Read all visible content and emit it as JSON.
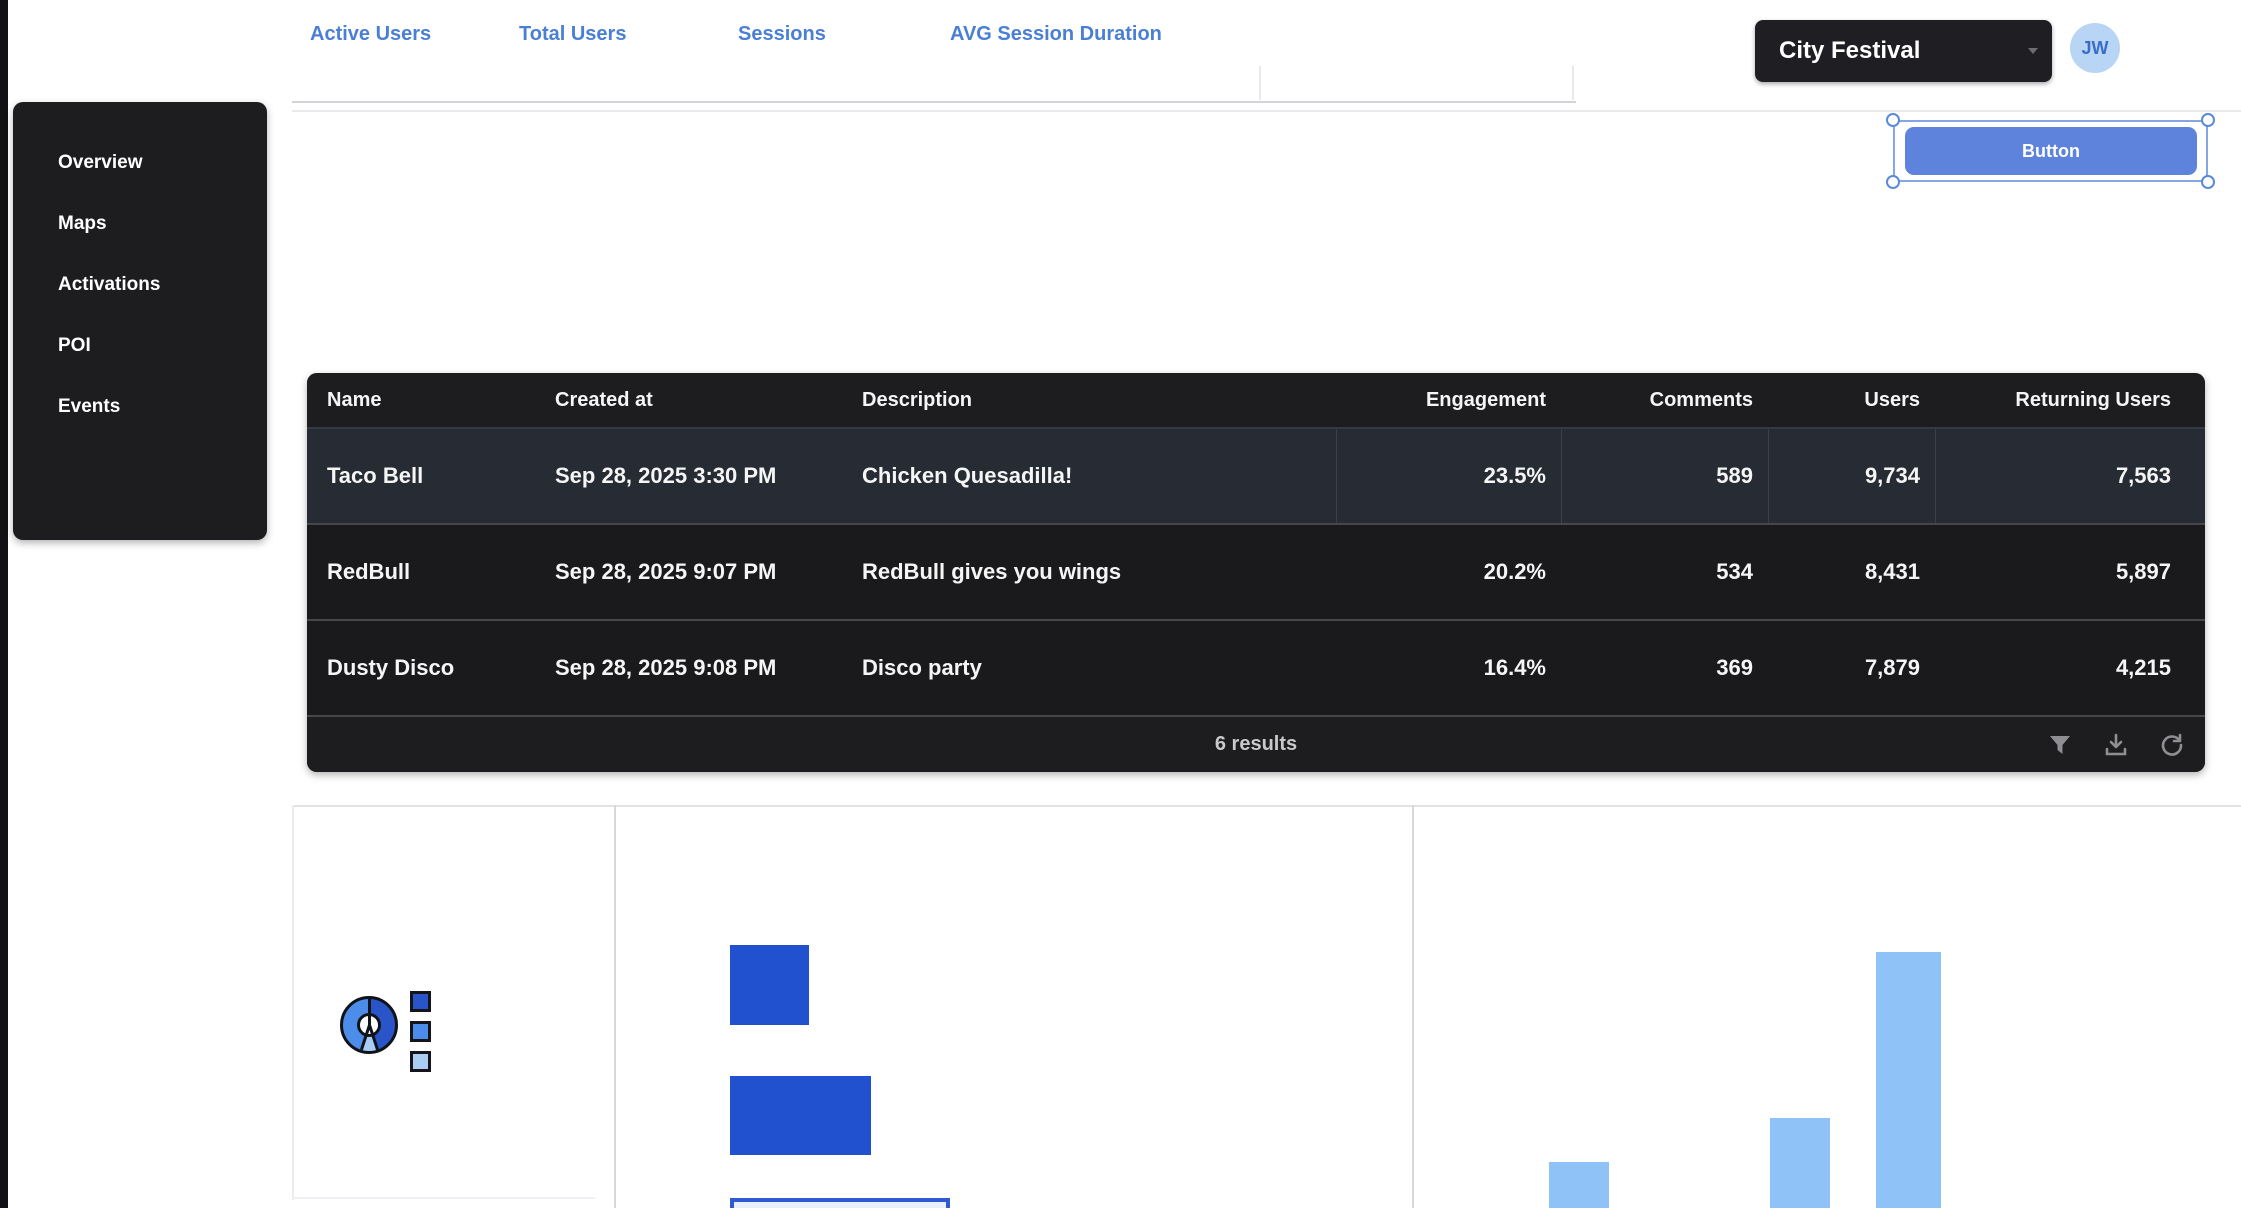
{
  "header": {
    "tabs": [
      {
        "label": "Active Users"
      },
      {
        "label": "Total Users"
      },
      {
        "label": "Sessions"
      },
      {
        "label": "AVG Session Duration"
      }
    ],
    "project_selector": {
      "label": "City Festival"
    },
    "avatar": {
      "initials": "JW"
    }
  },
  "canvas": {
    "selected_button_label": "Button"
  },
  "sidebar": {
    "items": [
      {
        "label": "Overview"
      },
      {
        "label": "Maps"
      },
      {
        "label": "Activations"
      },
      {
        "label": "POI"
      },
      {
        "label": "Events"
      }
    ]
  },
  "table": {
    "columns": [
      "Name",
      "Created at",
      "Description",
      "Engagement",
      "Comments",
      "Users",
      "Returning Users"
    ],
    "rows": [
      {
        "name": "Taco Bell",
        "created_at": "Sep 28, 2025 3:30 PM",
        "description": "Chicken Quesadilla!",
        "engagement": "23.5%",
        "comments": "589",
        "users": "9,734",
        "returning_users": "7,563"
      },
      {
        "name": "RedBull",
        "created_at": "Sep 28, 2025 9:07 PM",
        "description": "RedBull gives you wings",
        "engagement": "20.2%",
        "comments": "534",
        "users": "8,431",
        "returning_users": "5,897"
      },
      {
        "name": "Dusty Disco",
        "created_at": "Sep 28, 2025 9:08 PM",
        "description": "Disco party",
        "engagement": "16.4%",
        "comments": "369",
        "users": "7,879",
        "returning_users": "4,215"
      }
    ],
    "footer": {
      "results_text": "6 results",
      "icons": [
        "filter-icon",
        "download-icon",
        "refresh-icon"
      ]
    }
  },
  "colors": {
    "accent_blue": "#4a7fd4",
    "dark_panel": "#1d1d20",
    "row_highlight": "#262b34",
    "button_blue": "#5d83dd",
    "avatar_bg": "#b9d5f5",
    "avatar_text": "#3a6cc8",
    "bar_dark_blue": "#2151ce",
    "bar_light_blue": "#8fc2f7",
    "donut_dark": "#2a55c9",
    "donut_medium": "#4c8de9",
    "donut_light": "#a9cdf3"
  },
  "chart_data": [
    {
      "type": "pie",
      "title": "",
      "values": [
        45,
        10,
        45
      ],
      "colors": [
        "#2a55c9",
        "#a9cdf3",
        "#4c8de9"
      ],
      "legend_colors": [
        "#2a55c9",
        "#4c8de9",
        "#a9cdf3"
      ],
      "legend_position": "right",
      "donut": true
    },
    {
      "type": "bar",
      "orientation": "horizontal",
      "categories": [
        "",
        "",
        ""
      ],
      "values": [
        36,
        64,
        100
      ],
      "color": "#2151ce",
      "title": "",
      "xlabel": "",
      "ylabel": ""
    },
    {
      "type": "bar",
      "orientation": "vertical",
      "categories": [
        "",
        "",
        ""
      ],
      "values": [
        18,
        35,
        100
      ],
      "color": "#8fc2f7",
      "title": "",
      "xlabel": "",
      "ylabel": ""
    }
  ]
}
